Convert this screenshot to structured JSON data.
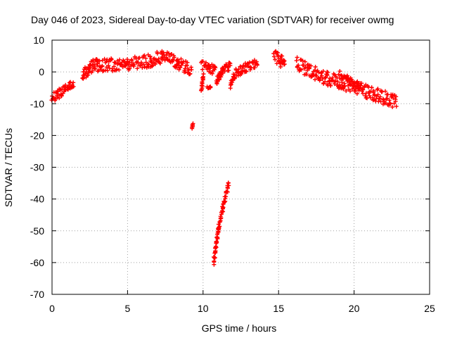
{
  "chart_data": {
    "type": "scatter",
    "title": "Day 046 of 2023, Sidereal Day-to-day VTEC variation (SDTVAR) for receiver owmg",
    "xlabel": "GPS time / hours",
    "ylabel": "SDTVAR / TECUs",
    "xlim": [
      0,
      25
    ],
    "ylim": [
      -70,
      10
    ],
    "xticks": [
      0,
      5,
      10,
      15,
      20,
      25
    ],
    "xtick_labels": [
      "0",
      "5",
      "10",
      "15",
      "20",
      "25"
    ],
    "yticks": [
      10,
      0,
      -10,
      -20,
      -30,
      -40,
      -50,
      -60,
      -70
    ],
    "ytick_labels": [
      "10",
      "0",
      "-10",
      "-20",
      "-30",
      "-40",
      "-50",
      "-60",
      "-70"
    ],
    "grid": true,
    "marker": "plus",
    "color": "#ff0000",
    "series": [
      {
        "name": "SDTVAR",
        "segments": [
          {
            "x": [
              0.0,
              0.6,
              1.4
            ],
            "y": [
              -8.0,
              -6.5,
              -4.0
            ],
            "jitter": 1.5
          },
          {
            "x": [
              2.0,
              2.5,
              3.0
            ],
            "y": [
              -1.5,
              1.0,
              3.5
            ],
            "jitter": 2.0
          },
          {
            "x": [
              3.0,
              5.0,
              6.5,
              7.3,
              8.3,
              9.2
            ],
            "y": [
              2.0,
              2.5,
              3.5,
              5.0,
              3.0,
              0.5
            ],
            "jitter": 2.0
          },
          {
            "x": [
              9.25,
              9.35
            ],
            "y": [
              -17.5,
              -16.5
            ],
            "jitter": 0.4
          },
          {
            "x": [
              9.9,
              10.4,
              10.8
            ],
            "y": [
              2.0,
              1.5,
              0.5
            ],
            "jitter": 1.5
          },
          {
            "x": [
              9.9,
              10.0
            ],
            "y": [
              -6.0,
              -1.0
            ],
            "jitter": 0.5
          },
          {
            "x": [
              10.3,
              10.5
            ],
            "y": [
              -5.0,
              -5.0
            ],
            "jitter": 0.4
          },
          {
            "x": [
              10.9,
              11.3,
              11.8
            ],
            "y": [
              -3.0,
              0.5,
              2.0
            ],
            "jitter": 1.2
          },
          {
            "x": [
              11.8,
              12.0
            ],
            "y": [
              -4.5,
              -1.5
            ],
            "jitter": 0.8
          },
          {
            "x": [
              12.0,
              12.8,
              13.6
            ],
            "y": [
              -1.0,
              1.5,
              2.5
            ],
            "jitter": 1.5
          },
          {
            "x": [
              10.7,
              11.0,
              11.3,
              11.7
            ],
            "y": [
              -60.0,
              -50.0,
              -43.0,
              -35.0
            ],
            "jitter": 0.8
          },
          {
            "x": [
              14.7,
              15.1,
              15.4
            ],
            "y": [
              5.0,
              3.5,
              2.5
            ],
            "jitter": 2.0
          },
          {
            "x": [
              16.2,
              17.2,
              18.2,
              19.2,
              20.2,
              21.3,
              22.8
            ],
            "y": [
              2.5,
              0.0,
              -2.0,
              -3.5,
              -5.0,
              -7.0,
              -9.5
            ],
            "jitter": 2.2
          },
          {
            "x": [
              19.0,
              19.7,
              20.3
            ],
            "y": [
              -0.5,
              -2.5,
              -4.5
            ],
            "jitter": 1.0
          }
        ]
      }
    ]
  }
}
